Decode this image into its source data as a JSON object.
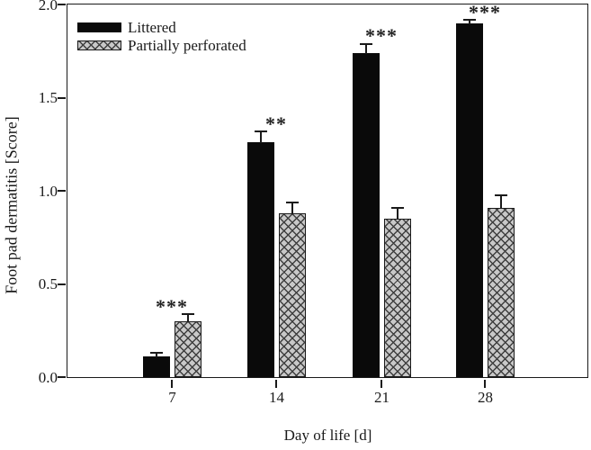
{
  "chart_data": {
    "type": "bar",
    "title": "",
    "xlabel": "Day of life [d]",
    "ylabel": "Foot pad dermatitis [Score]",
    "categories": [
      "7",
      "14",
      "21",
      "28"
    ],
    "series": [
      {
        "name": "Littered",
        "style": "solid",
        "values": [
          0.11,
          1.26,
          1.74,
          1.9
        ],
        "errors_plus": [
          0.02,
          0.06,
          0.05,
          0.02
        ]
      },
      {
        "name": "Partially perforated",
        "style": "hatch",
        "values": [
          0.3,
          0.88,
          0.85,
          0.91
        ],
        "errors_plus": [
          0.04,
          0.06,
          0.06,
          0.07
        ]
      }
    ],
    "significance_labels": [
      "***",
      "**",
      "***",
      "***"
    ],
    "ylim": [
      0.0,
      2.0
    ],
    "yticks": [
      "0.0",
      "0.5",
      "1.0",
      "1.5",
      "2.0"
    ],
    "grid": false,
    "legend_position": "top-left",
    "colors": {
      "littered_fill": "#0a0a0a",
      "perforated_fill": "#c8c8c8",
      "hatch_line": "#3f3f3f",
      "axis": "#1a1a1a",
      "background": "#ffffff"
    }
  }
}
